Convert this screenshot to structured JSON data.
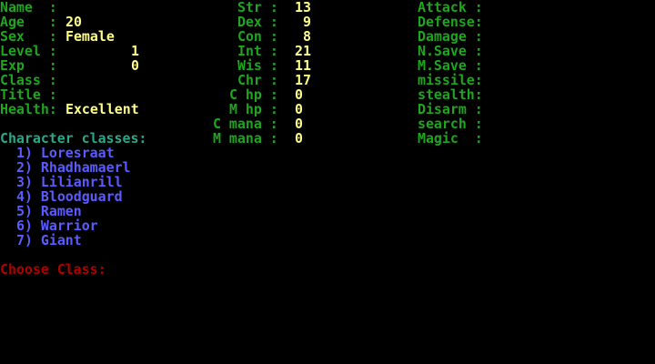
{
  "colors": {
    "label": "#1fa51f",
    "value": "#ffff8a",
    "heading": "#2aa88a",
    "class_item": "#5b5bff",
    "prompt": "#b00000"
  },
  "character": {
    "name": {
      "label": "Name  :",
      "value": ""
    },
    "age": {
      "label": "Age   :",
      "value": "20"
    },
    "sex": {
      "label": "Sex   :",
      "value": "Female"
    },
    "level": {
      "label": "Level :",
      "value": "1"
    },
    "exp": {
      "label": "Exp   :",
      "value": "0"
    },
    "class": {
      "label": "Class :",
      "value": ""
    },
    "title": {
      "label": "Title :",
      "value": ""
    },
    "health": {
      "label": "Health:",
      "value": "Excellent"
    }
  },
  "stats": [
    {
      "label": "Str :",
      "value": "13"
    },
    {
      "label": "Dex :",
      "value": " 9"
    },
    {
      "label": "Con :",
      "value": " 8"
    },
    {
      "label": "Int :",
      "value": "21"
    },
    {
      "label": "Wis :",
      "value": "11"
    },
    {
      "label": "Chr :",
      "value": "17"
    },
    {
      "label": "C hp :",
      "value": "0"
    },
    {
      "label": "M hp :",
      "value": "0"
    },
    {
      "label": "C mana :",
      "value": "0"
    },
    {
      "label": "M mana :",
      "value": "0"
    }
  ],
  "abilities": [
    "Attack :",
    "Defense:",
    "Damage :",
    "N.Save :",
    "M.Save :",
    "missile:",
    "stealth:",
    "Disarm :",
    "search :",
    "Magic  :"
  ],
  "classes_heading": "Character classes:",
  "classes": [
    "1) Loresraat",
    "2) Rhadhamaerl",
    "3) Lilianrill",
    "4) Bloodguard",
    "5) Ramen",
    "6) Warrior",
    "7) Giant"
  ],
  "prompt": "Choose Class:"
}
